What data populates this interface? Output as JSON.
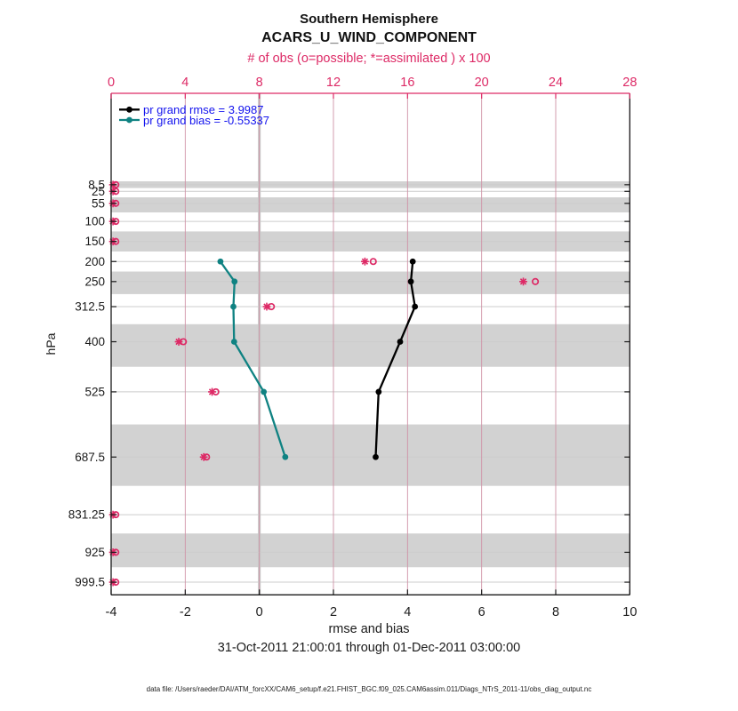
{
  "header": {
    "title1": "Southern Hemisphere",
    "title2": "ACARS_U_WIND_COMPONENT"
  },
  "legend": {
    "rmse": "pr grand rmse = 3.9987",
    "bias": "pr grand bias = -0.55337"
  },
  "footer": {
    "date_range": "31-Oct-2011 21:00:01 through 01-Dec-2011 03:00:00",
    "data_file": "data file: /Users/raeder/DAI/ATM_forcXX/CAM6_setup/f.e21.FHIST_BGC.f09_025.CAM6assim.011/Diags_NTrS_2011-11/obs_diag_output.nc"
  },
  "colors": {
    "accent_pink": "#dd2a66",
    "grid_pink": "#cf93a6",
    "band_gray": "#d2d2d2",
    "grid_gray": "#cccccc",
    "zero_gray": "#c6c6c6",
    "axis_dark": "#1a1a1a",
    "rmse_black": "#000000",
    "bias_teal": "#0f8282",
    "legend_blue": "#1313ee"
  },
  "chart_data": {
    "type": "line",
    "title": "Southern Hemisphere — ACARS_U_WIND_COMPONENT",
    "top_axis": {
      "label": "# of obs (o=possible; *=assimilated ) x 100",
      "ticks": [
        0,
        4,
        8,
        12,
        16,
        20,
        24,
        28
      ],
      "range": [
        0,
        28
      ]
    },
    "bottom_axis": {
      "label": "rmse and bias",
      "ticks": [
        -4,
        -2,
        0,
        2,
        4,
        6,
        8,
        10
      ],
      "range": [
        -4,
        10
      ]
    },
    "left_axis": {
      "label": "hPa",
      "tick_levels": [
        8.5,
        25,
        55,
        100,
        150,
        200,
        250,
        312.5,
        400,
        525,
        687.5,
        831.25,
        925,
        999.5
      ]
    },
    "shaded_bands_hpa": [
      [
        0,
        16.75
      ],
      [
        40,
        77.5
      ],
      [
        125,
        175
      ],
      [
        225,
        281.25
      ],
      [
        356.25,
        462.5
      ],
      [
        606.25,
        759.375
      ],
      [
        878.125,
        962.25
      ]
    ],
    "zero_line_x": 0,
    "series": [
      {
        "name": "pr grand rmse",
        "legend": "pr grand rmse = 3.9987",
        "grand_value": 3.9987,
        "color_key": "rmse_black",
        "points": [
          {
            "level": 200,
            "value": 4.14
          },
          {
            "level": 250,
            "value": 4.09
          },
          {
            "level": 312.5,
            "value": 4.2
          },
          {
            "level": 400,
            "value": 3.8
          },
          {
            "level": 525,
            "value": 3.22
          },
          {
            "level": 687.5,
            "value": 3.14
          }
        ]
      },
      {
        "name": "pr grand bias",
        "legend": "pr grand bias = -0.55337",
        "grand_value": -0.55337,
        "color_key": "bias_teal",
        "points": [
          {
            "level": 200,
            "value": -1.05
          },
          {
            "level": 250,
            "value": -0.67
          },
          {
            "level": 312.5,
            "value": -0.7
          },
          {
            "level": 400,
            "value": -0.68
          },
          {
            "level": 525,
            "value": 0.12
          },
          {
            "level": 687.5,
            "value": 0.7
          }
        ]
      }
    ],
    "obs_counts_x100": {
      "assimilated_marker": "*",
      "possible_marker": "o",
      "assimilated": [
        {
          "level": 8.5,
          "value": 0.1
        },
        {
          "level": 25,
          "value": 0.1
        },
        {
          "level": 55,
          "value": 0.1
        },
        {
          "level": 100,
          "value": 0.1
        },
        {
          "level": 150,
          "value": 0.1
        },
        {
          "level": 200,
          "value": 13.7
        },
        {
          "level": 250,
          "value": 22.25
        },
        {
          "level": 312.5,
          "value": 8.4
        },
        {
          "level": 400,
          "value": 3.65
        },
        {
          "level": 525,
          "value": 5.45
        },
        {
          "level": 687.5,
          "value": 5.0
        },
        {
          "level": 831.25,
          "value": 0.1
        },
        {
          "level": 925,
          "value": 0.1
        },
        {
          "level": 999.5,
          "value": 0.1
        }
      ],
      "possible": [
        {
          "level": 8.5,
          "value": 0.25
        },
        {
          "level": 25,
          "value": 0.25
        },
        {
          "level": 55,
          "value": 0.25
        },
        {
          "level": 100,
          "value": 0.25
        },
        {
          "level": 150,
          "value": 0.25
        },
        {
          "level": 200,
          "value": 14.15
        },
        {
          "level": 250,
          "value": 22.9
        },
        {
          "level": 312.5,
          "value": 8.65
        },
        {
          "level": 400,
          "value": 3.9
        },
        {
          "level": 525,
          "value": 5.65
        },
        {
          "level": 687.5,
          "value": 5.15
        },
        {
          "level": 831.25,
          "value": 0.25
        },
        {
          "level": 925,
          "value": 0.25
        },
        {
          "level": 999.5,
          "value": 0.25
        }
      ]
    }
  }
}
